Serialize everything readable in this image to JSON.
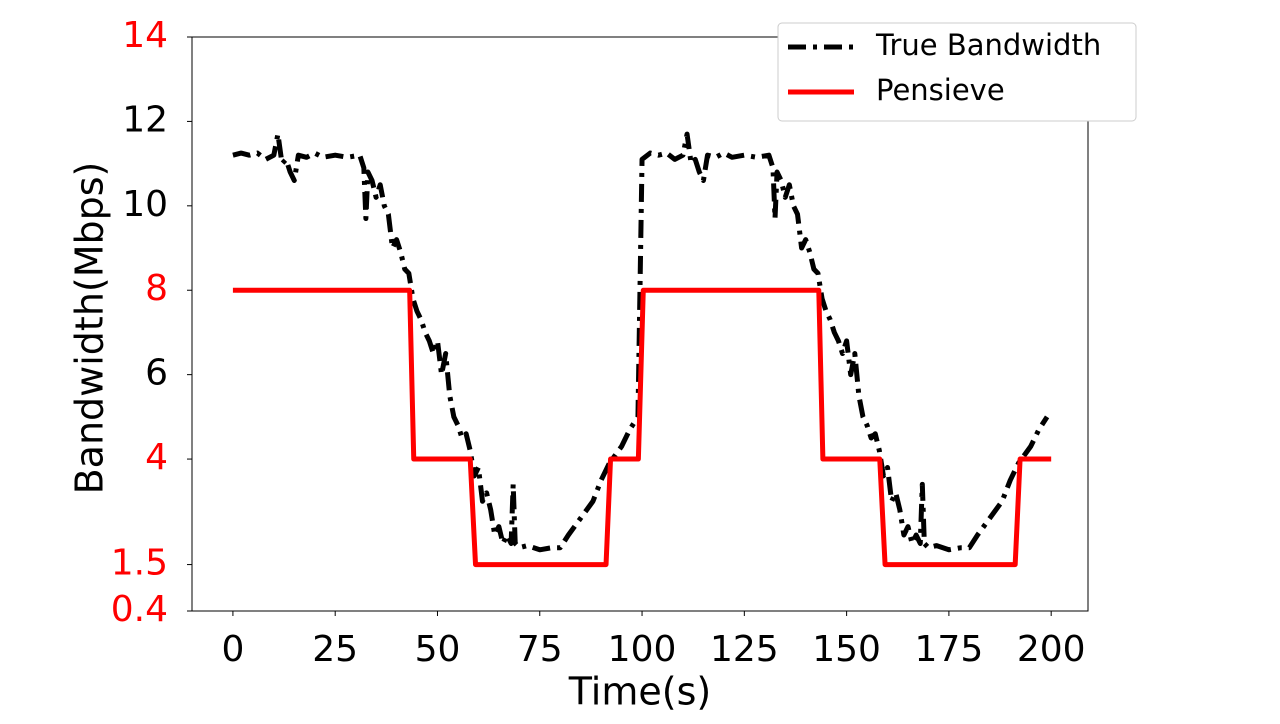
{
  "chart_data": {
    "type": "line",
    "xlabel": "Time(s)",
    "ylabel": "Bandwidth(Mbps)",
    "xlim": [
      -10,
      209
    ],
    "ylim": [
      0.4,
      14
    ],
    "xticks": [
      0,
      25,
      50,
      75,
      100,
      125,
      150,
      175,
      200
    ],
    "yticks": [
      0.4,
      1.5,
      4,
      6,
      8,
      10,
      12,
      14
    ],
    "ytick_colors": [
      "#ff0000",
      "#ff0000",
      "#ff0000",
      "#000000",
      "#ff0000",
      "#000000",
      "#000000",
      "#ff0000"
    ],
    "legend": "upper right",
    "series": [
      {
        "name": "True Bandwidth",
        "color": "#000000",
        "style": "dashdot",
        "x": [
          0,
          2,
          4,
          6,
          8,
          10,
          11,
          12,
          13,
          14,
          15,
          16,
          18,
          20,
          22,
          25,
          28,
          31,
          32,
          32.5,
          33,
          34,
          35,
          36,
          37,
          38,
          39,
          40,
          41,
          42,
          43,
          44,
          45,
          46,
          47,
          48,
          49,
          50,
          51,
          52,
          53,
          54,
          55,
          56,
          57,
          58,
          59,
          60,
          61,
          62,
          63,
          64,
          65,
          66,
          67,
          68,
          68.5,
          69,
          70,
          72,
          75,
          78,
          80,
          82,
          85,
          88,
          90,
          92,
          95,
          97,
          99,
          100,
          102,
          104,
          106,
          108,
          110,
          111,
          112,
          113,
          114,
          115,
          116,
          118,
          120,
          122,
          125,
          128,
          131,
          132,
          132.5,
          133,
          134,
          135,
          136,
          137,
          138,
          139,
          140,
          141,
          142,
          143,
          144,
          145,
          146,
          147,
          148,
          149,
          150,
          151,
          152,
          153,
          154,
          155,
          156,
          157,
          158,
          159,
          160,
          161,
          162,
          163,
          164,
          165,
          166,
          167,
          168,
          168.5,
          169,
          170,
          172,
          175,
          178,
          180,
          182,
          185,
          188,
          190,
          192,
          195,
          197,
          199
        ],
        "values": [
          11.2,
          11.25,
          11.2,
          11.25,
          11.1,
          11.2,
          11.7,
          11.0,
          11.1,
          10.8,
          10.6,
          11.2,
          11.15,
          11.25,
          11.15,
          11.2,
          11.15,
          11.2,
          10.9,
          9.7,
          10.8,
          10.6,
          10.2,
          10.5,
          10.0,
          9.8,
          9.0,
          9.2,
          8.9,
          8.5,
          8.4,
          7.8,
          7.5,
          7.3,
          7.0,
          6.8,
          6.5,
          6.8,
          6.0,
          6.5,
          5.5,
          5.0,
          4.8,
          4.5,
          4.6,
          4.2,
          3.6,
          3.8,
          3.0,
          3.2,
          2.8,
          2.2,
          2.4,
          2.0,
          2.2,
          2.0,
          3.4,
          2.0,
          1.9,
          1.95,
          1.85,
          1.9,
          1.9,
          2.2,
          2.6,
          3.0,
          3.5,
          3.9,
          4.3,
          4.7,
          5.0,
          11.1,
          11.25,
          11.2,
          11.25,
          11.1,
          11.2,
          11.7,
          11.0,
          11.1,
          10.8,
          10.6,
          11.2,
          11.15,
          11.25,
          11.15,
          11.2,
          11.15,
          11.2,
          10.9,
          9.7,
          10.8,
          10.6,
          10.2,
          10.5,
          10.0,
          9.8,
          9.0,
          9.2,
          8.9,
          8.5,
          8.4,
          7.8,
          7.5,
          7.3,
          7.0,
          6.8,
          6.5,
          6.8,
          6.0,
          6.5,
          5.5,
          5.0,
          4.8,
          4.5,
          4.6,
          4.2,
          3.6,
          3.8,
          3.0,
          3.2,
          2.8,
          2.2,
          2.4,
          2.0,
          2.2,
          2.0,
          3.4,
          2.0,
          1.9,
          1.95,
          1.85,
          1.9,
          1.9,
          2.2,
          2.6,
          3.0,
          3.5,
          3.9,
          4.3,
          4.7,
          5.0
        ]
      },
      {
        "name": "Pensieve",
        "color": "#ff0000",
        "style": "solid",
        "x": [
          0,
          43.2,
          44.2,
          58,
          59.3,
          91.2,
          92.3,
          99.1,
          100.3,
          143.2,
          144.2,
          158.1,
          159.4,
          191.2,
          192.4,
          200
        ],
        "values": [
          8,
          8,
          4,
          4,
          1.5,
          1.5,
          4,
          4,
          8,
          8,
          4,
          4,
          1.5,
          1.5,
          4,
          4
        ]
      }
    ]
  }
}
